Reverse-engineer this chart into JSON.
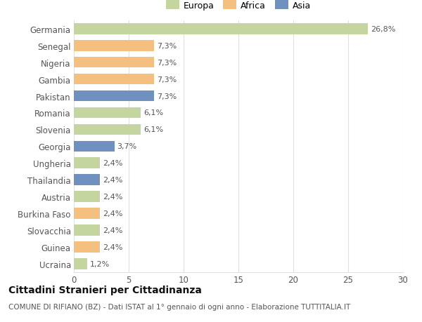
{
  "categories": [
    "Germania",
    "Senegal",
    "Nigeria",
    "Gambia",
    "Pakistan",
    "Romania",
    "Slovenia",
    "Georgia",
    "Ungheria",
    "Thailandia",
    "Austria",
    "Burkina Faso",
    "Slovacchia",
    "Guinea",
    "Ucraina"
  ],
  "values": [
    26.8,
    7.3,
    7.3,
    7.3,
    7.3,
    6.1,
    6.1,
    3.7,
    2.4,
    2.4,
    2.4,
    2.4,
    2.4,
    2.4,
    1.2
  ],
  "continents": [
    "Europa",
    "Africa",
    "Africa",
    "Africa",
    "Asia",
    "Europa",
    "Europa",
    "Asia",
    "Europa",
    "Asia",
    "Europa",
    "Africa",
    "Europa",
    "Africa",
    "Europa"
  ],
  "colors": {
    "Europa": "#c5d5a0",
    "Africa": "#f5bf80",
    "Asia": "#7090c0"
  },
  "title": "Cittadini Stranieri per Cittadinanza",
  "subtitle": "COMUNE DI RIFIANO (BZ) - Dati ISTAT al 1° gennaio di ogni anno - Elaborazione TUTTITALIA.IT",
  "xlim": [
    0,
    30
  ],
  "xticks": [
    0,
    5,
    10,
    15,
    20,
    25,
    30
  ],
  "bar_height": 0.65,
  "background_color": "#ffffff",
  "grid_color": "#e0e0e0",
  "label_color": "#555555",
  "value_label_fontsize": 8,
  "axis_label_fontsize": 8.5,
  "title_fontsize": 10,
  "subtitle_fontsize": 7.5,
  "legend_europa": "#c5d5a0",
  "legend_africa": "#f5bf80",
  "legend_asia": "#7090c0"
}
